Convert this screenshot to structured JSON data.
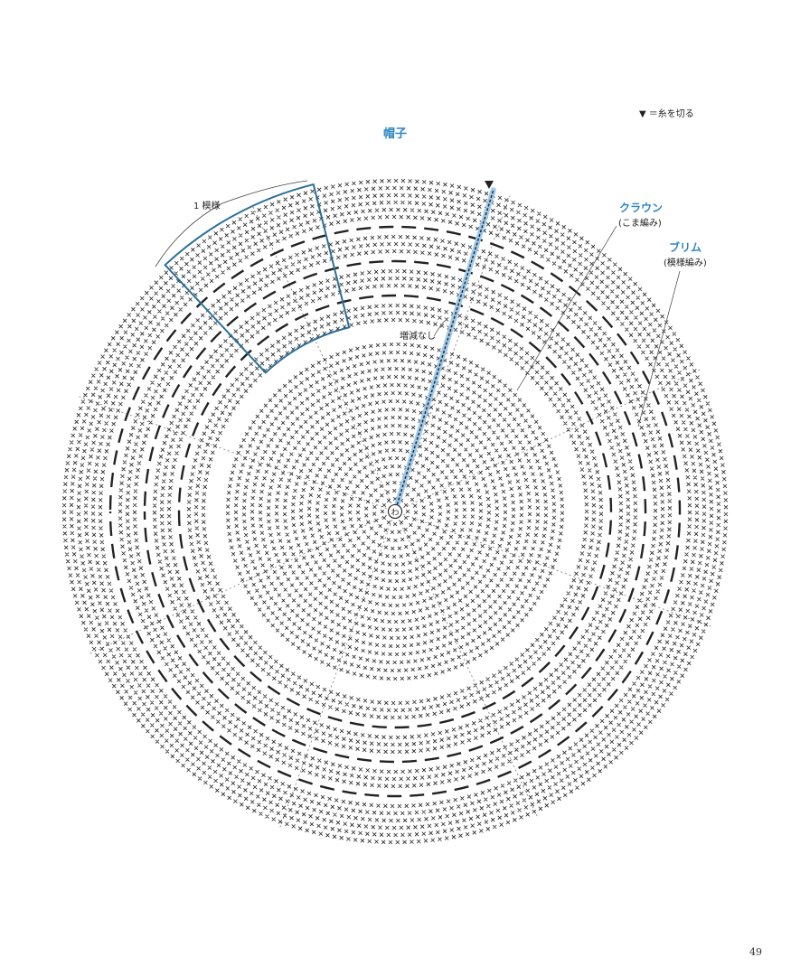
{
  "title": "帽子",
  "legend": {
    "symbol_name": "triangle-down-icon",
    "text": "＝糸を切る"
  },
  "sections": {
    "crown": {
      "label": "クラウン",
      "stitch": "(こま編み)"
    },
    "brim": {
      "label": "ブリム",
      "stitch": "(模様編み)"
    }
  },
  "annotations": {
    "repeat": "1 模様",
    "no_change": "増減なし"
  },
  "center_mark": "わ",
  "page_number": "49",
  "colors": {
    "accent_blue": "#2f86c4",
    "highlight_blue": "#9cc9ec",
    "outline_blue": "#2b6f9a",
    "ink": "#222222"
  }
}
